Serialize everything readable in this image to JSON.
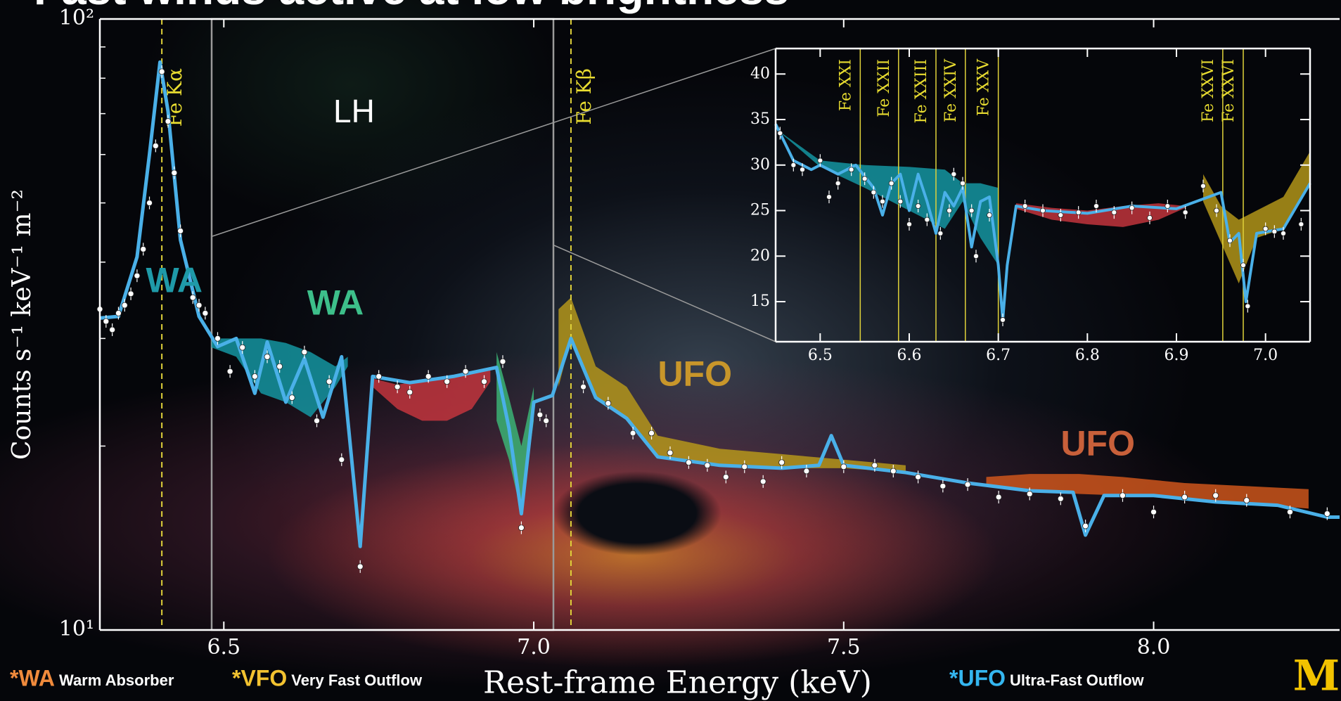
{
  "title": "Fast winds active at low brightness",
  "chart_data": [
    {
      "type": "line",
      "log_y": true,
      "xlabel": "Rest-frame Energy (keV)",
      "ylabel": "Counts s⁻¹ keV⁻¹ m⁻²",
      "xlim": [
        6.3,
        8.3
      ],
      "ylim": [
        10,
        100
      ],
      "xticks": [
        6.5,
        {
          "value": 7,
          "label": "7.0"
        },
        7.5,
        {
          "value": 8,
          "label": "8.0"
        }
      ],
      "yticks": [
        {
          "value": 10,
          "label": "10¹"
        },
        {
          "value": 100,
          "label": "10²"
        }
      ],
      "yminorticks": [
        20,
        30,
        40,
        50,
        60,
        70,
        80,
        90
      ],
      "lines": [
        {
          "x": 6.4,
          "label": "Fe Kα"
        },
        {
          "x": 7.06,
          "label": "Fe Kβ"
        }
      ],
      "bands": [
        {
          "color": "#159aa6",
          "x": [
            6.48,
            6.52,
            6.56,
            6.6,
            6.64,
            6.68,
            6.7
          ],
          "upper": [
            30,
            30,
            30,
            29.5,
            28.5,
            27,
            28
          ],
          "lower": [
            29,
            28,
            24.4,
            23.6,
            22.3,
            25,
            27
          ]
        },
        {
          "color": "#c8363e",
          "x": [
            6.74,
            6.78,
            6.82,
            6.86,
            6.9,
            6.93
          ],
          "upper": [
            25.8,
            25.2,
            25.6,
            26,
            26.3,
            26.8
          ],
          "lower": [
            25,
            23,
            22,
            22,
            23,
            25.5
          ]
        },
        {
          "color": "#3cb878",
          "x": [
            6.94,
            6.96,
            6.98,
            7.0
          ],
          "upper": [
            28.5,
            24,
            20,
            25
          ],
          "lower": [
            22,
            19,
            15.5,
            22
          ]
        },
        {
          "color": "#b89a1a",
          "x": [
            7.04,
            7.06,
            7.1,
            7.15,
            7.2,
            7.3,
            7.4,
            7.5,
            7.6
          ],
          "upper": [
            33.5,
            35,
            27,
            25,
            20.8,
            19.8,
            19.4,
            19,
            18.6
          ],
          "lower": [
            25,
            30,
            24,
            22.2,
            19.2,
            18.6,
            18.4,
            18.4,
            18.1
          ]
        },
        {
          "color": "#d4581c",
          "x": [
            7.73,
            7.8,
            7.88,
            7.95,
            8.05,
            8.15,
            8.25
          ],
          "upper": [
            17.8,
            18,
            18,
            17.8,
            17.4,
            17.2,
            17
          ],
          "lower": [
            17.2,
            16.9,
            16.7,
            16.6,
            16.4,
            16.1,
            15.8
          ]
        }
      ],
      "line": {
        "color": "#4ab0e8",
        "x": [
          6.3,
          6.33,
          6.36,
          6.38,
          6.397,
          6.41,
          6.43,
          6.46,
          6.49,
          6.52,
          6.55,
          6.57,
          6.6,
          6.63,
          6.66,
          6.69,
          6.72,
          6.74,
          6.8,
          6.87,
          6.94,
          6.96,
          6.98,
          7.0,
          7.03,
          7.06,
          7.1,
          7.15,
          7.2,
          7.3,
          7.4,
          7.46,
          7.48,
          7.5,
          7.6,
          7.7,
          7.8,
          7.87,
          7.89,
          7.92,
          8.0,
          8.1,
          8.2,
          8.28,
          8.3
        ],
        "values": [
          32.4,
          32.6,
          40.8,
          60,
          85,
          70.6,
          43.5,
          32.6,
          29.1,
          30,
          24.4,
          29.6,
          23.6,
          27.8,
          22.3,
          28,
          13.7,
          26,
          25.4,
          26,
          26.9,
          21.4,
          15.5,
          23.6,
          24.2,
          30,
          24,
          22.2,
          19.2,
          18.6,
          18.4,
          18.6,
          20.8,
          18.6,
          18.1,
          17.4,
          16.9,
          16.8,
          14.3,
          16.6,
          16.6,
          16.2,
          16,
          15.3,
          15.3
        ]
      },
      "points": {
        "color": "#ffffff",
        "x": [
          6.3,
          6.31,
          6.32,
          6.33,
          6.34,
          6.35,
          6.36,
          6.37,
          6.38,
          6.39,
          6.4,
          6.41,
          6.42,
          6.43,
          6.45,
          6.46,
          6.47,
          6.49,
          6.51,
          6.53,
          6.55,
          6.57,
          6.59,
          6.61,
          6.63,
          6.65,
          6.67,
          6.69,
          6.72,
          6.75,
          6.78,
          6.8,
          6.83,
          6.86,
          6.89,
          6.92,
          6.95,
          6.98,
          7.01,
          7.02,
          7.08,
          7.12,
          7.16,
          7.19,
          7.22,
          7.25,
          7.28,
          7.31,
          7.34,
          7.37,
          7.4,
          7.44,
          7.5,
          7.55,
          7.58,
          7.62,
          7.66,
          7.7,
          7.75,
          7.8,
          7.85,
          7.89,
          7.95,
          8.0,
          8.05,
          8.1,
          8.15,
          8.22,
          8.28
        ],
        "values": [
          33.5,
          32,
          31,
          33,
          34,
          35.5,
          38,
          42,
          50,
          62,
          82,
          68,
          56,
          45,
          35,
          34,
          33,
          30,
          26.5,
          29,
          26,
          28,
          27,
          24,
          28.5,
          22,
          25.5,
          19,
          12.7,
          26,
          25,
          24.5,
          26,
          25.5,
          26.5,
          25.5,
          27.5,
          14.7,
          22.5,
          22,
          25,
          23.5,
          21,
          21,
          19.5,
          18.8,
          18.6,
          17.8,
          18.5,
          17.5,
          18.8,
          18.2,
          18.5,
          18.6,
          18.2,
          17.8,
          17.2,
          17.3,
          16.5,
          16.7,
          16.4,
          14.8,
          16.6,
          15.6,
          16.5,
          16.6,
          16.3,
          15.6,
          15.5
        ]
      },
      "annotations": [
        {
          "text": "LH",
          "x": 6.71,
          "y": 70,
          "color": "#ffffff"
        },
        {
          "text": "WA",
          "x": 6.42,
          "y": 37,
          "color": "#1f9aa8"
        },
        {
          "text": "WA",
          "x": 6.68,
          "y": 34,
          "color": "#3dbf8a"
        },
        {
          "text": "UFO",
          "x": 7.26,
          "y": 26,
          "color": "#c8962a"
        },
        {
          "text": "UFO",
          "x": 7.91,
          "y": 20,
          "color": "#c8603a"
        }
      ]
    },
    {
      "type": "line",
      "xlim": [
        6.45,
        7.05
      ],
      "ylim": [
        10.6,
        42.8
      ],
      "xticks": [
        6.5,
        6.6,
        6.7,
        6.8,
        6.9,
        {
          "value": 7,
          "label": "7.0"
        }
      ],
      "yticks": [
        15,
        20,
        25,
        30,
        35,
        40
      ],
      "lines": [
        {
          "x": 6.545,
          "label": "Fe XXI"
        },
        {
          "x": 6.588,
          "label": "Fe XXII"
        },
        {
          "x": 6.63,
          "label": "Fe XXIII"
        },
        {
          "x": 6.663,
          "label": "Fe XXIV"
        },
        {
          "x": 6.7,
          "label": "Fe XXV"
        },
        {
          "x": 6.952,
          "label": "Fe XXVI"
        },
        {
          "x": 6.975,
          "label": "Fe XXVI"
        }
      ],
      "bands": [
        {
          "color": "#159aa6",
          "x": [
            6.45,
            6.5,
            6.55,
            6.6,
            6.64,
            6.66,
            6.68,
            6.7
          ],
          "upper": [
            34,
            30.5,
            30,
            29.8,
            29.5,
            28,
            28,
            27.5
          ],
          "lower": [
            34,
            29.8,
            27.5,
            25,
            23,
            26,
            22,
            19
          ]
        },
        {
          "color": "#c8363e",
          "x": [
            6.72,
            6.76,
            6.8,
            6.84,
            6.88,
            6.91
          ],
          "upper": [
            25.8,
            25.3,
            25,
            25.5,
            25.8,
            25.5
          ],
          "lower": [
            25.2,
            24,
            23.5,
            23.2,
            24,
            25.3
          ]
        },
        {
          "color": "#b89a1a",
          "x": [
            6.93,
            6.95,
            6.97,
            6.99,
            7.02,
            7.05
          ],
          "upper": [
            29,
            25.5,
            24,
            25,
            26.5,
            31.5
          ],
          "lower": [
            26,
            21.5,
            17,
            22,
            23,
            28
          ]
        }
      ],
      "line": {
        "color": "#4ab0e8",
        "x": [
          6.45,
          6.47,
          6.49,
          6.5,
          6.52,
          6.54,
          6.56,
          6.57,
          6.58,
          6.59,
          6.6,
          6.61,
          6.62,
          6.63,
          6.64,
          6.65,
          6.66,
          6.67,
          6.68,
          6.69,
          6.7,
          6.705,
          6.71,
          6.72,
          6.75,
          6.8,
          6.85,
          6.9,
          6.95,
          6.96,
          6.97,
          6.978,
          6.99,
          7.02,
          7.05
        ],
        "values": [
          34.5,
          30.5,
          29.5,
          30,
          29,
          30,
          27.5,
          24.5,
          28,
          29,
          25,
          29,
          26,
          22.5,
          27,
          25.5,
          27.5,
          21,
          26,
          26.5,
          19,
          13,
          19,
          25.5,
          25,
          24.7,
          25.5,
          25.2,
          27,
          21.5,
          22.5,
          15,
          22.5,
          23,
          28
        ]
      },
      "points": {
        "color": "#ffffff",
        "x": [
          6.455,
          6.47,
          6.48,
          6.5,
          6.51,
          6.52,
          6.535,
          6.55,
          6.56,
          6.57,
          6.58,
          6.59,
          6.6,
          6.61,
          6.62,
          6.635,
          6.645,
          6.65,
          6.66,
          6.67,
          6.675,
          6.69,
          6.705,
          6.73,
          6.75,
          6.77,
          6.79,
          6.81,
          6.83,
          6.85,
          6.87,
          6.89,
          6.91,
          6.93,
          6.945,
          6.96,
          6.975,
          6.98,
          7.0,
          7.01,
          7.02,
          7.04
        ],
        "values": [
          33.5,
          30,
          29.5,
          30.5,
          26.5,
          28,
          29.5,
          28.5,
          27,
          26,
          28,
          26,
          23.5,
          25.5,
          24,
          22.5,
          25,
          29,
          28,
          25,
          20,
          24.5,
          13,
          25.5,
          25,
          24.5,
          24.8,
          25.5,
          24.8,
          25.3,
          24.2,
          25.5,
          24.8,
          27.7,
          25,
          21.7,
          19,
          14.5,
          23,
          22.7,
          22.5,
          23.5
        ]
      }
    }
  ],
  "legend_notes": [
    {
      "mark": "*WA",
      "text": "Warm Absorber",
      "color": "#f08a3c"
    },
    {
      "mark": "*VFO",
      "text": "Very Fast Outflow",
      "color": "#f2c230"
    },
    {
      "mark": "*UFO",
      "text": "Ultra-Fast Outflow",
      "color": "#34b6f0"
    }
  ],
  "logo": "M"
}
